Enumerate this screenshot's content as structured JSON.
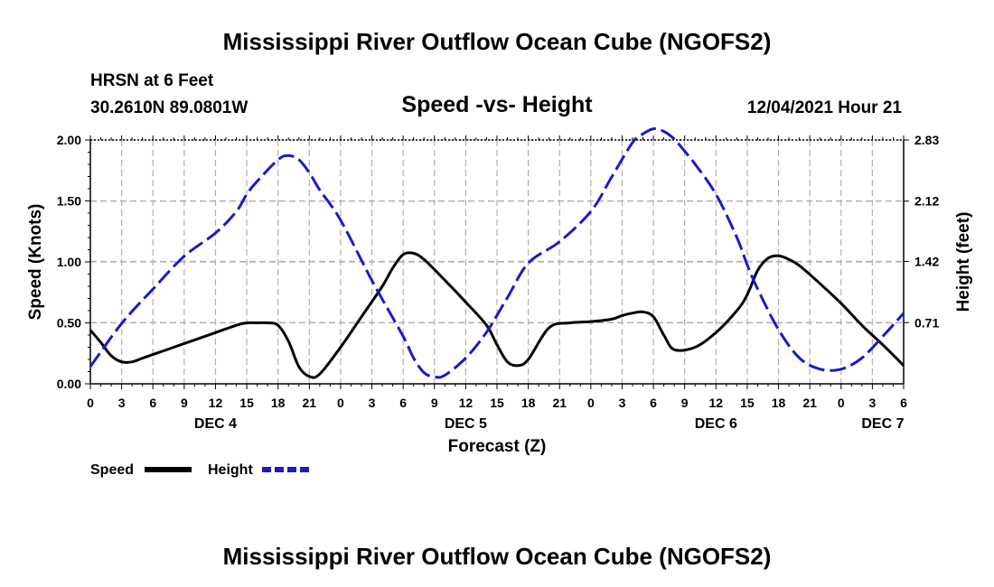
{
  "header": {
    "title": "Mississippi River Outflow Ocean Cube (NGOFS2)",
    "station": "HRSN at 6 Feet",
    "coords": "30.2610N  89.0801W",
    "subtitle": "Speed -vs- Height",
    "datetime": "12/04/2021 Hour 21"
  },
  "footer": {
    "title": "Mississippi River Outflow Ocean Cube (NGOFS2)"
  },
  "colors": {
    "speed": "#000000",
    "height": "#1a1ac8",
    "grid": "#b0b0b0"
  },
  "chart_data": {
    "type": "line",
    "title": "Speed -vs- Height",
    "xlabel": "Forecast (Z)",
    "ylabel": "Speed (Knots)",
    "y2label": "Height (feet)",
    "x_range_hours": [
      0,
      78
    ],
    "x_ticks": [
      {
        "h": 0,
        "label": "0"
      },
      {
        "h": 3,
        "label": "3"
      },
      {
        "h": 6,
        "label": "6"
      },
      {
        "h": 9,
        "label": "9"
      },
      {
        "h": 12,
        "label": "12"
      },
      {
        "h": 15,
        "label": "15"
      },
      {
        "h": 18,
        "label": "18"
      },
      {
        "h": 21,
        "label": "21"
      },
      {
        "h": 24,
        "label": "0"
      },
      {
        "h": 27,
        "label": "3"
      },
      {
        "h": 30,
        "label": "6"
      },
      {
        "h": 33,
        "label": "9"
      },
      {
        "h": 36,
        "label": "12"
      },
      {
        "h": 39,
        "label": "15"
      },
      {
        "h": 42,
        "label": "18"
      },
      {
        "h": 45,
        "label": "21"
      },
      {
        "h": 48,
        "label": "0"
      },
      {
        "h": 51,
        "label": "3"
      },
      {
        "h": 54,
        "label": "6"
      },
      {
        "h": 57,
        "label": "9"
      },
      {
        "h": 60,
        "label": "12"
      },
      {
        "h": 63,
        "label": "15"
      },
      {
        "h": 66,
        "label": "18"
      },
      {
        "h": 69,
        "label": "21"
      },
      {
        "h": 72,
        "label": "0"
      },
      {
        "h": 75,
        "label": "3"
      },
      {
        "h": 78,
        "label": "6"
      }
    ],
    "date_labels": [
      {
        "h": 12,
        "label": "DEC 4"
      },
      {
        "h": 36,
        "label": "DEC 5"
      },
      {
        "h": 60,
        "label": "DEC 6"
      },
      {
        "h": 76,
        "label": "DEC 7"
      }
    ],
    "y_left": {
      "min": 0,
      "max": 2.0,
      "ticks": [
        0.0,
        0.5,
        1.0,
        1.5,
        2.0
      ],
      "labels": [
        "0.00",
        "0.50",
        "1.00",
        "1.50",
        "2.00"
      ]
    },
    "y_right": {
      "min": 0,
      "max": 2.83,
      "ticks": [
        0.71,
        1.42,
        2.12,
        2.83
      ],
      "labels": [
        "0.71",
        "1.42",
        "2.12",
        "2.83"
      ]
    },
    "series": [
      {
        "name": "Speed",
        "axis": "left",
        "style": "solid",
        "x": [
          0,
          1,
          2,
          3,
          4,
          5,
          6,
          8,
          10,
          12,
          14,
          15,
          16,
          17,
          18,
          19,
          20,
          21,
          22,
          24,
          26,
          28,
          29,
          30,
          31,
          32,
          34,
          36,
          38,
          39,
          40,
          41,
          42,
          44,
          46,
          48,
          50,
          51,
          52,
          53,
          54,
          55,
          56,
          58,
          60,
          62,
          63,
          64,
          65,
          66,
          67,
          68,
          70,
          72,
          74,
          76,
          78
        ],
        "values": [
          0.44,
          0.34,
          0.23,
          0.18,
          0.18,
          0.21,
          0.24,
          0.3,
          0.36,
          0.42,
          0.48,
          0.5,
          0.5,
          0.5,
          0.48,
          0.35,
          0.14,
          0.06,
          0.08,
          0.3,
          0.55,
          0.8,
          0.95,
          1.06,
          1.07,
          1.02,
          0.85,
          0.67,
          0.48,
          0.32,
          0.18,
          0.15,
          0.2,
          0.46,
          0.5,
          0.51,
          0.53,
          0.56,
          0.58,
          0.59,
          0.55,
          0.4,
          0.28,
          0.3,
          0.42,
          0.6,
          0.73,
          0.93,
          1.03,
          1.05,
          1.02,
          0.97,
          0.82,
          0.66,
          0.48,
          0.32,
          0.15
        ]
      },
      {
        "name": "Height",
        "axis": "right",
        "style": "dashed",
        "x": [
          0,
          3,
          6,
          9,
          12,
          14,
          15,
          16,
          18,
          19,
          20,
          21,
          22,
          24,
          27,
          30,
          31,
          32,
          33,
          34,
          36,
          38,
          40,
          42,
          45,
          48,
          50,
          52,
          53,
          54,
          55,
          56,
          57,
          58,
          60,
          62,
          63,
          64,
          66,
          68,
          70,
          72,
          74,
          76,
          78
        ],
        "values": [
          0.2,
          0.7,
          1.1,
          1.48,
          1.75,
          2.0,
          2.2,
          2.35,
          2.6,
          2.65,
          2.6,
          2.45,
          2.25,
          1.9,
          1.2,
          0.55,
          0.3,
          0.13,
          0.08,
          0.1,
          0.3,
          0.6,
          1.0,
          1.4,
          1.65,
          2.0,
          2.4,
          2.8,
          2.9,
          2.96,
          2.93,
          2.84,
          2.7,
          2.55,
          2.2,
          1.7,
          1.38,
          1.1,
          0.63,
          0.3,
          0.17,
          0.17,
          0.3,
          0.55,
          0.82
        ]
      }
    ],
    "legend": [
      {
        "label": "Speed",
        "style": "solid"
      },
      {
        "label": "Height",
        "style": "dashed"
      }
    ]
  }
}
